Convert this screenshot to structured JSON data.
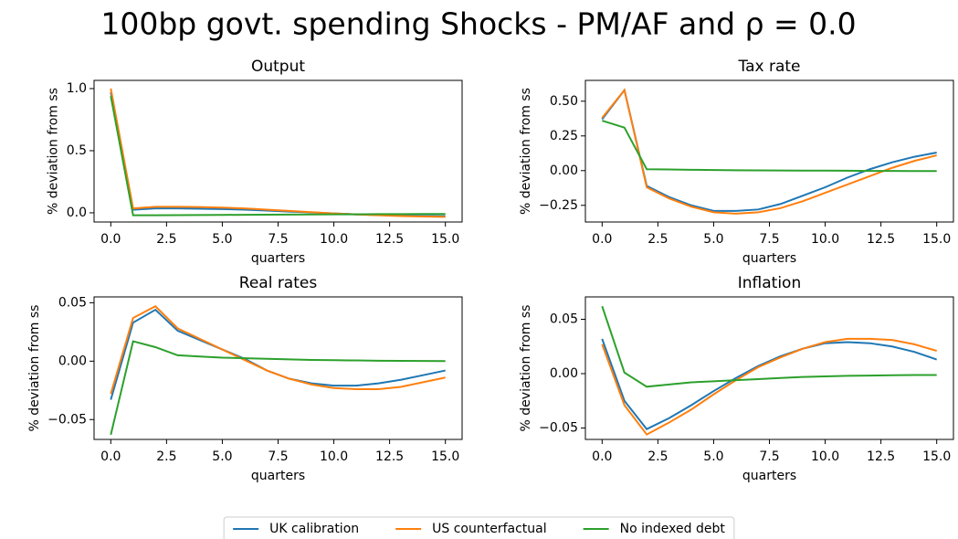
{
  "title": "100bp govt. spending Shocks - PM/AF and ρ =  0.0",
  "legend": "lower center",
  "chart_data": [
    {
      "type": "line",
      "title": "Output",
      "xlabel": "quarters",
      "ylabel": "% deviation from ss",
      "x": [
        0,
        1,
        2,
        3,
        4,
        5,
        6,
        7,
        8,
        9,
        10,
        11,
        12,
        13,
        14,
        15
      ],
      "xlim": [
        -0.75,
        15.75
      ],
      "xticks": [
        {
          "value": 0,
          "label": "0.0"
        },
        2.5,
        {
          "value": 5,
          "label": "5.0"
        },
        7.5,
        {
          "value": 10,
          "label": "10.0"
        },
        12.5,
        {
          "value": 15,
          "label": "15.0"
        }
      ],
      "ylim": [
        -0.074,
        1.066
      ],
      "yticks": [
        {
          "value": 0,
          "label": "0.0"
        },
        0.5,
        {
          "value": 1,
          "label": "1.0"
        }
      ],
      "series": [
        {
          "name": "UK calibration",
          "color": "#1f77b4",
          "values": [
            0.97,
            0.025,
            0.035,
            0.035,
            0.033,
            0.03,
            0.025,
            0.018,
            0.01,
            0.003,
            -0.005,
            -0.012,
            -0.018,
            -0.022,
            -0.025,
            -0.027
          ]
        },
        {
          "name": "US counterfactual",
          "color": "#ff7f0e",
          "values": [
            1.0,
            0.035,
            0.048,
            0.048,
            0.046,
            0.042,
            0.035,
            0.025,
            0.015,
            0.005,
            -0.005,
            -0.013,
            -0.02,
            -0.026,
            -0.03,
            -0.033
          ]
        },
        {
          "name": "No indexed debt",
          "color": "#2ca02c",
          "values": [
            0.94,
            -0.02,
            -0.02,
            -0.019,
            -0.018,
            -0.017,
            -0.016,
            -0.015,
            -0.014,
            -0.013,
            -0.012,
            -0.012,
            -0.011,
            -0.011,
            -0.01,
            -0.01
          ]
        }
      ]
    },
    {
      "type": "line",
      "title": "Tax rate",
      "xlabel": "quarters",
      "ylabel": "% deviation from ss",
      "x": [
        0,
        1,
        2,
        3,
        4,
        5,
        6,
        7,
        8,
        9,
        10,
        11,
        12,
        13,
        14,
        15
      ],
      "xlim": [
        -0.75,
        15.75
      ],
      "xticks": [
        {
          "value": 0,
          "label": "0.0"
        },
        2.5,
        {
          "value": 5,
          "label": "5.0"
        },
        7.5,
        {
          "value": 10,
          "label": "10.0"
        },
        12.5,
        {
          "value": 15,
          "label": "15.0"
        }
      ],
      "ylim": [
        -0.37,
        0.65
      ],
      "yticks": [
        {
          "value": -0.25,
          "label": "−0.25"
        },
        {
          "value": 0,
          "label": "0.00"
        },
        0.25,
        {
          "value": 0.5,
          "label": "0.50"
        }
      ],
      "series": [
        {
          "color": "#1f77b4",
          "values": [
            0.37,
            0.58,
            -0.11,
            -0.19,
            -0.25,
            -0.29,
            -0.29,
            -0.28,
            -0.24,
            -0.18,
            -0.12,
            -0.05,
            0.01,
            0.06,
            0.1,
            0.13
          ]
        },
        {
          "color": "#ff7f0e",
          "values": [
            0.38,
            0.58,
            -0.12,
            -0.2,
            -0.26,
            -0.3,
            -0.31,
            -0.3,
            -0.27,
            -0.22,
            -0.16,
            -0.1,
            -0.04,
            0.02,
            0.07,
            0.11
          ]
        },
        {
          "color": "#2ca02c",
          "values": [
            0.36,
            0.31,
            0.01,
            0.008,
            0.006,
            0.004,
            0.003,
            0.002,
            0.001,
            0.0,
            0.0,
            -0.001,
            -0.002,
            -0.002,
            -0.003,
            -0.003
          ]
        }
      ]
    },
    {
      "type": "line",
      "title": "Real rates",
      "xlabel": "quarters",
      "ylabel": "% deviation from ss",
      "x": [
        0,
        1,
        2,
        3,
        4,
        5,
        6,
        7,
        8,
        9,
        10,
        11,
        12,
        13,
        14,
        15
      ],
      "xlim": [
        -0.75,
        15.75
      ],
      "xticks": [
        {
          "value": 0,
          "label": "0.0"
        },
        2.5,
        {
          "value": 5,
          "label": "5.0"
        },
        7.5,
        {
          "value": 10,
          "label": "10.0"
        },
        12.5,
        {
          "value": 15,
          "label": "15.0"
        }
      ],
      "ylim": [
        -0.067,
        0.055
      ],
      "yticks": [
        {
          "value": -0.05,
          "label": "−0.05"
        },
        {
          "value": 0,
          "label": "0.00"
        },
        0.05
      ],
      "series": [
        {
          "color": "#1f77b4",
          "values": [
            -0.033,
            0.033,
            0.044,
            0.026,
            0.018,
            0.01,
            0.002,
            -0.008,
            -0.015,
            -0.019,
            -0.021,
            -0.021,
            -0.019,
            -0.016,
            -0.012,
            -0.008
          ]
        },
        {
          "color": "#ff7f0e",
          "values": [
            -0.028,
            0.037,
            0.047,
            0.028,
            0.019,
            0.01,
            0.001,
            -0.008,
            -0.015,
            -0.02,
            -0.023,
            -0.024,
            -0.024,
            -0.022,
            -0.018,
            -0.014
          ]
        },
        {
          "color": "#2ca02c",
          "values": [
            -0.063,
            0.017,
            0.012,
            0.005,
            0.004,
            0.003,
            0.0025,
            0.002,
            0.0015,
            0.001,
            0.0008,
            0.0006,
            0.0004,
            0.0003,
            0.0002,
            0.0001
          ]
        }
      ]
    },
    {
      "type": "line",
      "title": "Inflation",
      "xlabel": "quarters",
      "ylabel": "% deviation from ss",
      "x": [
        0,
        1,
        2,
        3,
        4,
        5,
        6,
        7,
        8,
        9,
        10,
        11,
        12,
        13,
        14,
        15
      ],
      "xlim": [
        -0.75,
        15.75
      ],
      "xticks": [
        {
          "value": 0,
          "label": "0.0"
        },
        2.5,
        {
          "value": 5,
          "label": "5.0"
        },
        7.5,
        {
          "value": 10,
          "label": "10.0"
        },
        12.5,
        {
          "value": 15,
          "label": "15.0"
        }
      ],
      "ylim": [
        -0.0605,
        0.0706
      ],
      "yticks": [
        {
          "value": -0.05,
          "label": "−0.05"
        },
        {
          "value": 0,
          "label": "0.00"
        },
        0.05
      ],
      "series": [
        {
          "color": "#1f77b4",
          "values": [
            0.032,
            -0.025,
            -0.051,
            -0.041,
            -0.029,
            -0.016,
            -0.004,
            0.007,
            0.016,
            0.023,
            0.028,
            0.029,
            0.028,
            0.025,
            0.02,
            0.013
          ]
        },
        {
          "color": "#ff7f0e",
          "values": [
            0.027,
            -0.029,
            -0.056,
            -0.045,
            -0.033,
            -0.019,
            -0.006,
            0.006,
            0.015,
            0.023,
            0.029,
            0.032,
            0.032,
            0.031,
            0.027,
            0.021
          ]
        },
        {
          "color": "#2ca02c",
          "values": [
            0.062,
            0.001,
            -0.012,
            -0.01,
            -0.008,
            -0.007,
            -0.006,
            -0.005,
            -0.004,
            -0.003,
            -0.0025,
            -0.002,
            -0.0018,
            -0.0015,
            -0.0013,
            -0.0012
          ]
        }
      ]
    }
  ]
}
